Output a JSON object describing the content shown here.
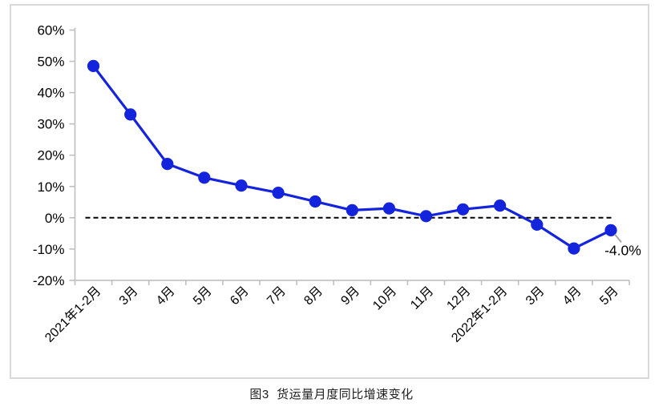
{
  "figure_caption": "图3  货运量月度同比增速变化",
  "chart_data": {
    "type": "line",
    "title": "",
    "xlabel": "",
    "ylabel": "",
    "categories": [
      "2021年1-2月",
      "3月",
      "4月",
      "5月",
      "6月",
      "7月",
      "8月",
      "9月",
      "10月",
      "11月",
      "12月",
      "2022年1-2月",
      "3月",
      "4月",
      "5月"
    ],
    "series": [
      {
        "name": "货运量月度同比增速",
        "values": [
          48.5,
          33.0,
          17.2,
          12.8,
          10.3,
          8.0,
          5.2,
          2.4,
          3.0,
          0.5,
          2.7,
          3.9,
          -2.2,
          -9.8,
          -4.0
        ]
      }
    ],
    "ylim": [
      -20,
      60
    ],
    "ytick_step": 10,
    "ytick_labels": [
      "60%",
      "50%",
      "40%",
      "30%",
      "20%",
      "10%",
      "0%",
      "-10%",
      "-20%"
    ],
    "grid": false,
    "legend_position": "none",
    "zero_reference_line": {
      "visible": true,
      "style": "dashed",
      "color": "#000000"
    },
    "data_labels": [
      {
        "category_index": 14,
        "text": "-4.0%"
      }
    ],
    "colors": {
      "line": "#1423DC",
      "marker": "#1423DC",
      "axis": "#BFBFBF",
      "tick": "#BFBFBF",
      "leader_line": "#A6A6A6",
      "text": "#000000",
      "frame_border": "#D9D9D9"
    }
  }
}
